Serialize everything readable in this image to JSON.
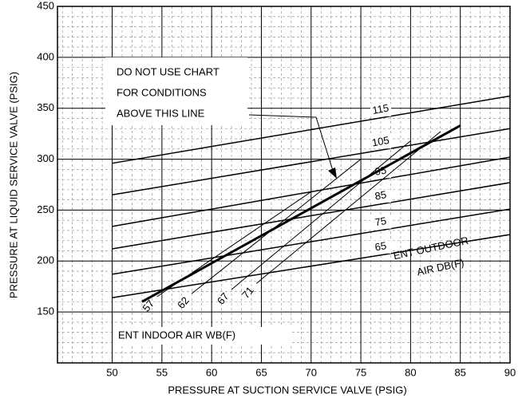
{
  "chart_data": {
    "type": "line",
    "xlabel": "PRESSURE AT SUCTION SERVICE VALVE (PSIG)",
    "ylabel": "PRESSURE AT LIQUID SERVICE VALVE (PSIG)",
    "xlim": [
      44.5,
      90
    ],
    "ylim": [
      100,
      450
    ],
    "xticks": [
      50,
      55,
      60,
      65,
      70,
      75,
      80,
      85,
      90
    ],
    "yticks": [
      150,
      200,
      250,
      300,
      350,
      400,
      450
    ],
    "grid": true,
    "annotation": [
      "DO NOT USE CHART",
      "FOR CONDITIONS",
      "ABOVE THIS LINE"
    ],
    "outdoor_label": [
      "ENT OUTDOOR",
      "AIR DB(F)"
    ],
    "indoor_label": "ENT INDOOR AIR WB(F)",
    "series": [
      {
        "name": "115",
        "group": "outdoor",
        "color": "#000000",
        "line_width": 1.5,
        "x": [
          50,
          90
        ],
        "values": [
          296,
          362
        ]
      },
      {
        "name": "105",
        "group": "outdoor",
        "color": "#000000",
        "line_width": 1.5,
        "x": [
          50,
          90
        ],
        "values": [
          265,
          330
        ]
      },
      {
        "name": "95",
        "group": "outdoor",
        "color": "#000000",
        "line_width": 1.5,
        "x": [
          50,
          90
        ],
        "values": [
          234,
          302
        ]
      },
      {
        "name": "85",
        "group": "outdoor",
        "color": "#000000",
        "line_width": 1.5,
        "x": [
          50,
          90
        ],
        "values": [
          212,
          277
        ]
      },
      {
        "name": "75",
        "group": "outdoor",
        "color": "#000000",
        "line_width": 1.5,
        "x": [
          50,
          90
        ],
        "values": [
          187,
          251
        ]
      },
      {
        "name": "65",
        "group": "outdoor",
        "color": "#000000",
        "line_width": 1.5,
        "x": [
          50,
          90
        ],
        "values": [
          164,
          226
        ]
      },
      {
        "name": "57",
        "group": "indoor",
        "color": "#000000",
        "line_width": 1,
        "x": [
          54.5,
          70
        ],
        "values": [
          165,
          268
        ]
      },
      {
        "name": "62",
        "group": "indoor",
        "color": "#000000",
        "line_width": 1,
        "x": [
          58,
          75
        ],
        "values": [
          168,
          300
        ]
      },
      {
        "name": "67",
        "group": "indoor",
        "color": "#000000",
        "line_width": 1,
        "x": [
          62,
          80
        ],
        "values": [
          172,
          318
        ]
      },
      {
        "name": "71",
        "group": "indoor",
        "color": "#000000",
        "line_width": 1,
        "x": [
          64.5,
          83
        ],
        "values": [
          178,
          327
        ]
      },
      {
        "group": "limit",
        "color": "#000000",
        "line_width": 3,
        "x": [
          53,
          85
        ],
        "values": [
          160,
          333
        ]
      }
    ]
  }
}
